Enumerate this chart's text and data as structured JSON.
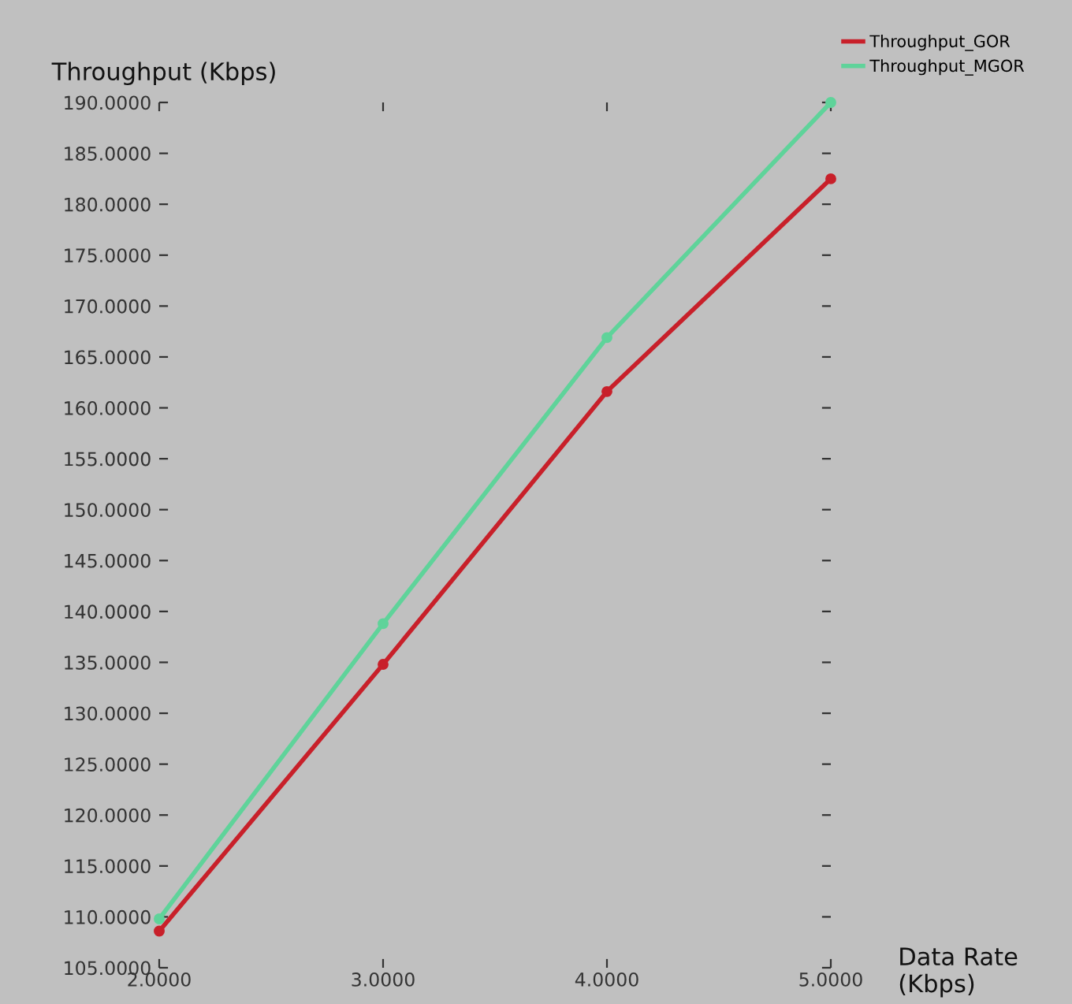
{
  "chart_data": {
    "type": "line",
    "ylabel": "Throughput (Kbps)",
    "xlabel": "Data Rate\n(Kbps)",
    "x": [
      2,
      3,
      4,
      5
    ],
    "series": [
      {
        "name": "Throughput_GOR",
        "color": "#c8202a",
        "values": [
          108.6,
          134.8,
          161.6,
          182.5
        ]
      },
      {
        "name": "Throughput_MGOR",
        "color": "#5fd39a",
        "values": [
          109.8,
          138.8,
          166.9,
          190
        ]
      }
    ],
    "xlim": [
      2,
      5
    ],
    "ylim": [
      105,
      190
    ],
    "xticks": [
      {
        "value": 2,
        "label": "2.0000"
      },
      {
        "value": 3,
        "label": "3.0000"
      },
      {
        "value": 4,
        "label": "4.0000"
      },
      {
        "value": 5,
        "label": "5.0000"
      }
    ],
    "yticks": [
      {
        "value": 105,
        "label": "105.0000"
      },
      {
        "value": 110,
        "label": "110.0000"
      },
      {
        "value": 115,
        "label": "115.0000"
      },
      {
        "value": 120,
        "label": "120.0000"
      },
      {
        "value": 125,
        "label": "125.0000"
      },
      {
        "value": 130,
        "label": "130.0000"
      },
      {
        "value": 135,
        "label": "135.0000"
      },
      {
        "value": 140,
        "label": "140.0000"
      },
      {
        "value": 145,
        "label": "145.0000"
      },
      {
        "value": 150,
        "label": "150.0000"
      },
      {
        "value": 155,
        "label": "155.0000"
      },
      {
        "value": 160,
        "label": "160.0000"
      },
      {
        "value": 165,
        "label": "165.0000"
      },
      {
        "value": 170,
        "label": "170.0000"
      },
      {
        "value": 175,
        "label": "175.0000"
      },
      {
        "value": 180,
        "label": "180.0000"
      },
      {
        "value": 185,
        "label": "185.0000"
      },
      {
        "value": 190,
        "label": "190.0000"
      }
    ],
    "grid": false,
    "legend": "top right",
    "marker": "circle",
    "line_style": "solid"
  }
}
